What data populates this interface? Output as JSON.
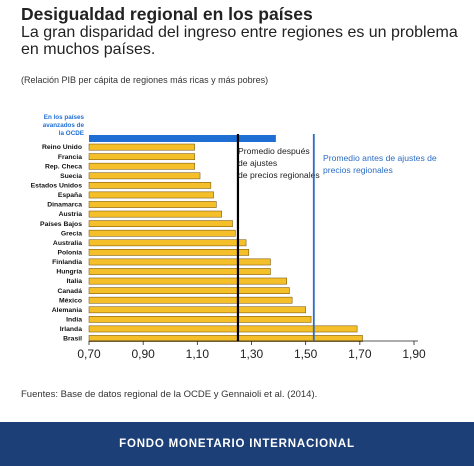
{
  "title": "Desigualdad regional en los países",
  "subtitle": "La gran disparidad del ingreso entre regiones es un problema en muchos países.",
  "note": "(Relación PIB per cápita de regiones más ricas y más pobres)",
  "source": "Fuentes: Base de datos regional de la OCDE y Gennaioli et al. (2014).",
  "footer": "FONDO MONETARIO INTERNACIONAL",
  "chart_data": {
    "type": "bar",
    "orientation": "horizontal",
    "categories": [
      "En los países avanzados de la OCDE",
      "Reino Unido",
      "Francia",
      "Rep. Checa",
      "Suecia",
      "Estados Unidos",
      "España",
      "Dinamarca",
      "Austria",
      "Países Bajos",
      "Grecia",
      "Australia",
      "Polonia",
      "Finlandia",
      "Hungría",
      "Italia",
      "Canadá",
      "México",
      "Alemania",
      "India",
      "Irlanda",
      "Brasil"
    ],
    "values": [
      1.39,
      1.09,
      1.09,
      1.09,
      1.11,
      1.15,
      1.16,
      1.17,
      1.19,
      1.23,
      1.24,
      1.28,
      1.29,
      1.37,
      1.37,
      1.43,
      1.44,
      1.45,
      1.5,
      1.52,
      1.69,
      1.71
    ],
    "highlight_index": 0,
    "xlim": [
      0.7,
      1.9
    ],
    "xticks": [
      "0,70",
      "0,90",
      "1,10",
      "1,30",
      "1,50",
      "1,70",
      "1,90"
    ],
    "reference_lines": [
      {
        "label": "Promedio después de ajustes de precios regionales",
        "value": 1.25,
        "color": "#000000"
      },
      {
        "label": "Promedio antes de ajustes de precios regionales",
        "value": 1.53,
        "color": "#2b6cc4"
      }
    ],
    "colors": {
      "bar": "#f5bf2a",
      "bar_edge": "#6b4a00",
      "highlight": "#1f6ed4",
      "highlight_label": "#1f6ed4"
    }
  }
}
